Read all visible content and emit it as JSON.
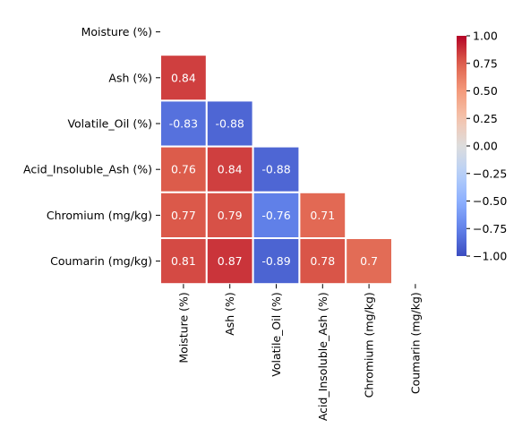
{
  "chart_data": {
    "type": "heatmap",
    "title": "",
    "xlabel": "",
    "ylabel": "",
    "variables": [
      "Moisture (%)",
      "Ash (%)",
      "Volatile_Oil (%)",
      "Acid_Insoluble_Ash (%)",
      "Chromium (mg/kg)",
      "Coumarin (mg/kg)"
    ],
    "mask": "upper-triangle-including-diagonal",
    "matrix": [
      [
        null,
        null,
        null,
        null,
        null,
        null
      ],
      [
        0.84,
        null,
        null,
        null,
        null,
        null
      ],
      [
        -0.83,
        -0.88,
        null,
        null,
        null,
        null
      ],
      [
        0.76,
        0.84,
        -0.88,
        null,
        null,
        null
      ],
      [
        0.77,
        0.79,
        -0.76,
        0.71,
        null,
        null
      ],
      [
        0.81,
        0.87,
        -0.89,
        0.78,
        0.7,
        null
      ]
    ],
    "cell_labels": [
      [
        null,
        null,
        null,
        null,
        null,
        null
      ],
      [
        "0.84",
        null,
        null,
        null,
        null,
        null
      ],
      [
        "-0.83",
        "-0.88",
        null,
        null,
        null,
        null
      ],
      [
        "0.76",
        "0.84",
        "-0.88",
        null,
        null,
        null
      ],
      [
        "0.77",
        "0.79",
        "-0.76",
        "0.71",
        null,
        null
      ],
      [
        "0.81",
        "0.87",
        "-0.89",
        "0.78",
        "0.7",
        null
      ]
    ],
    "colormap": "coolwarm",
    "vmin": -1.0,
    "vmax": 1.0,
    "colorbar": {
      "ticks": [
        1.0,
        0.75,
        0.5,
        0.25,
        0.0,
        -0.25,
        -0.5,
        -0.75,
        -1.0
      ],
      "tick_labels": [
        "1.00",
        "0.75",
        "0.50",
        "0.25",
        "0.00",
        "−0.25",
        "−0.50",
        "−0.75",
        "−1.00"
      ]
    },
    "colors": {
      "cell_border": "#ffffff",
      "annotation_text": "#ffffff",
      "axis_text": "#000000"
    }
  }
}
